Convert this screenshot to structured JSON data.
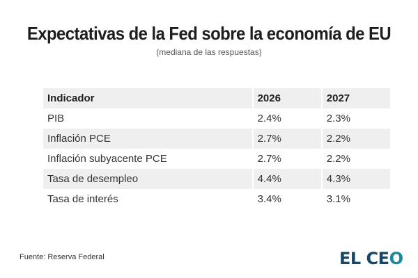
{
  "header": {
    "title": "Expectativas de la Fed sobre la economía de EU",
    "subtitle": "(mediana de las respuestas)"
  },
  "table": {
    "columns": [
      "Indicador",
      "2026",
      "2027"
    ],
    "rows": [
      {
        "indicador": "PIB",
        "y2026": "2.4%",
        "y2027": "2.3%"
      },
      {
        "indicador": "Inflación PCE",
        "y2026": "2.7%",
        "y2027": "2.2%"
      },
      {
        "indicador": "Inflación subyacente PCE",
        "y2026": "2.7%",
        "y2027": "2.2%"
      },
      {
        "indicador": "Tasa de desempleo",
        "y2026": "4.4%",
        "y2027": "4.3%"
      },
      {
        "indicador": "Tasa de interés",
        "y2026": "3.4%",
        "y2027": "3.1%"
      }
    ]
  },
  "footer": {
    "source": "Fuente: Reserva Federal",
    "logo_main": "EL CE",
    "logo_end": "O"
  },
  "colors": {
    "shade": "#efefef",
    "logo": "#15486a",
    "logo_accent": "#1b8aa0"
  }
}
